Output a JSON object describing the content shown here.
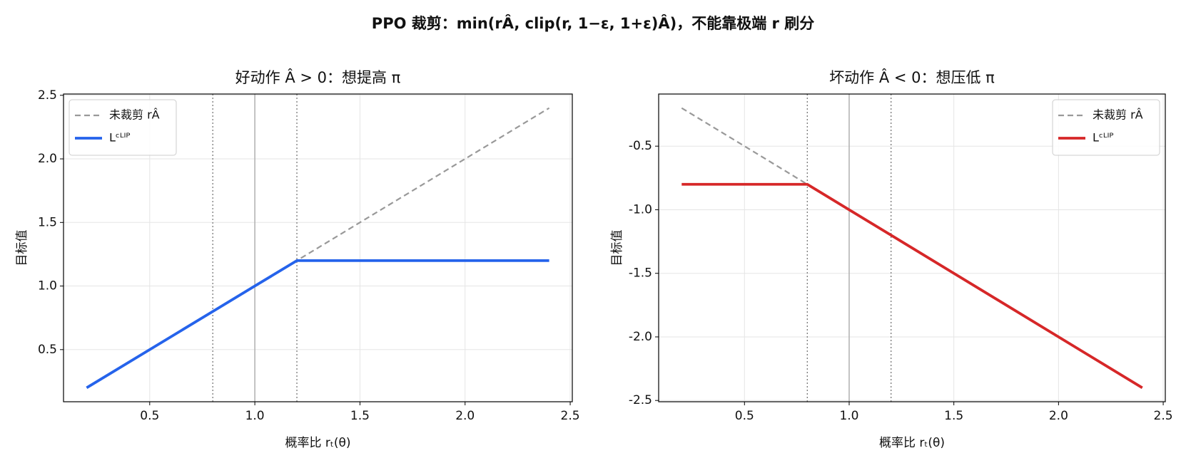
{
  "title": "PPO 裁剪：min(rÂ, clip(r, 1−ε, 1+ε)Â)，不能靠极端 r 刷分",
  "chart_data": [
    {
      "type": "line",
      "title": "好动作 Â > 0：想提高 π",
      "x_label": "概率比 rₜ(θ)",
      "y_label": "目标值",
      "x": [
        0.2,
        0.8,
        1.0,
        1.2,
        2.4
      ],
      "series": [
        {
          "name": "未裁剪 rÂ",
          "color": "#999999",
          "dash": true,
          "values": [
            0.2,
            0.8,
            1.0,
            1.2,
            2.4
          ]
        },
        {
          "name": "Lᶜᴸᴵᴾ",
          "color": "#2563eb",
          "dash": false,
          "values": [
            0.2,
            0.8,
            1.0,
            1.2,
            1.2
          ]
        }
      ],
      "vlines_dotted": [
        0.8,
        1.2
      ],
      "vline_solid": 1.0,
      "xlim": [
        0.09,
        2.51
      ],
      "ylim": [
        0.09,
        2.51
      ],
      "xticks": [
        0.5,
        {
          "value": 1,
          "label": "1.0"
        },
        1.5,
        {
          "value": 2,
          "label": "2.0"
        },
        2.5
      ],
      "yticks": [
        0.5,
        {
          "value": 1,
          "label": "1.0"
        },
        1.5,
        {
          "value": 2,
          "label": "2.0"
        },
        2.5
      ],
      "grid": true,
      "legend": "upper left"
    },
    {
      "type": "line",
      "title": "坏动作 Â < 0：想压低 π",
      "x_label": "概率比 rₜ(θ)",
      "y_label": "目标值",
      "x": [
        0.2,
        0.8,
        1.0,
        1.2,
        2.4
      ],
      "series": [
        {
          "name": "未裁剪 rÂ",
          "color": "#999999",
          "dash": true,
          "values": [
            -0.2,
            -0.8,
            -1.0,
            -1.2,
            -2.4
          ]
        },
        {
          "name": "Lᶜᴸᴵᴾ",
          "color": "#d62728",
          "dash": false,
          "values": [
            -0.8,
            -0.8,
            -1.0,
            -1.2,
            -2.4
          ]
        }
      ],
      "vlines_dotted": [
        0.8,
        1.2
      ],
      "vline_solid": 1.0,
      "xlim": [
        0.09,
        2.51
      ],
      "ylim": [
        -2.51,
        -0.09
      ],
      "xticks": [
        0.5,
        {
          "value": 1,
          "label": "1.0"
        },
        1.5,
        {
          "value": 2,
          "label": "2.0"
        },
        2.5
      ],
      "yticks": [
        -0.5,
        {
          "value": -1,
          "label": "-1.0"
        },
        -1.5,
        {
          "value": -2,
          "label": "-2.0"
        },
        -2.5
      ],
      "grid": true,
      "legend": "upper right"
    }
  ]
}
